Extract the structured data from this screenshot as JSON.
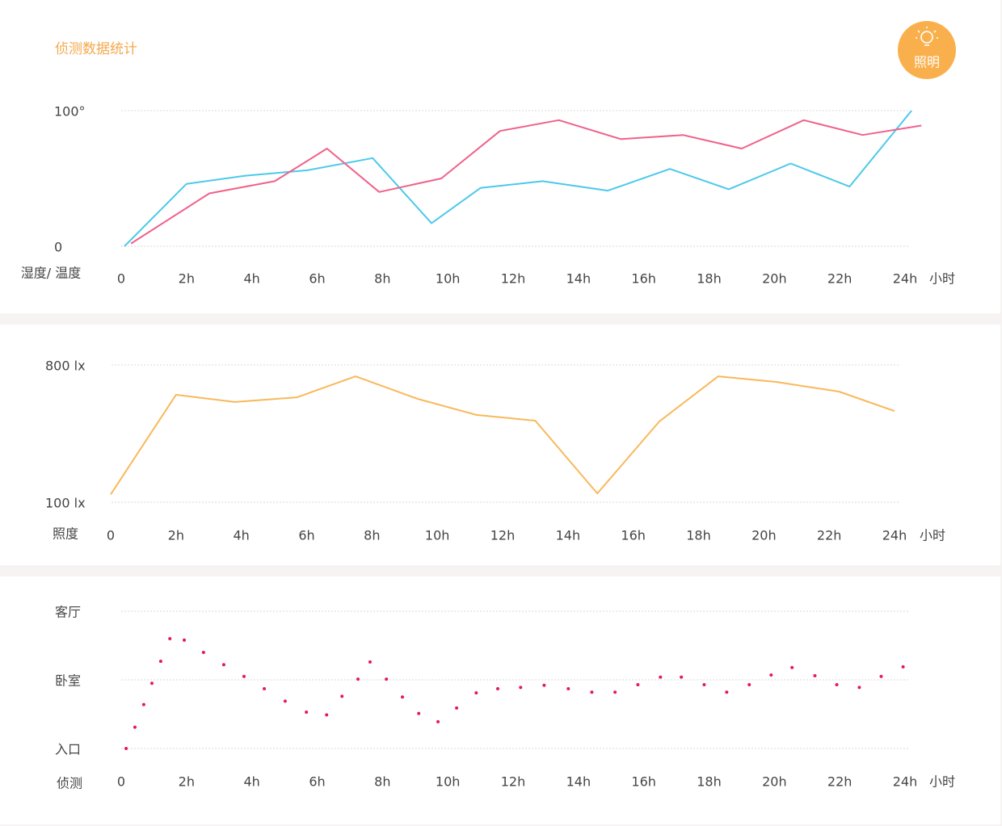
{
  "header": {
    "title": "侦测数据统计",
    "button": "照明"
  },
  "chart_data": [
    {
      "type": "line",
      "y_label": "湿度/ 温度",
      "x_label": "小时",
      "xlim": [
        0,
        24
      ],
      "ylim": [
        0,
        100
      ],
      "xticks": [
        0,
        {
          "value": 2,
          "label": "2h"
        },
        {
          "value": 4,
          "label": "4h"
        },
        {
          "value": 6,
          "label": "6h"
        },
        {
          "value": 8,
          "label": "8h"
        },
        {
          "value": 10,
          "label": "10h"
        },
        {
          "value": 12,
          "label": "12h"
        },
        {
          "value": 14,
          "label": "14h"
        },
        {
          "value": 16,
          "label": "16h"
        },
        {
          "value": 18,
          "label": "18h"
        },
        {
          "value": 20,
          "label": "20h"
        },
        {
          "value": 22,
          "label": "22h"
        },
        {
          "value": 24,
          "label": "24h"
        }
      ],
      "yticks": [
        {
          "value": 100,
          "label": "100°"
        },
        0
      ],
      "grid": true,
      "series": [
        {
          "color": "#4cc9ea",
          "x": [
            0.1,
            2.0,
            3.8,
            5.7,
            7.7,
            9.5,
            11.0,
            12.9,
            14.9,
            16.8,
            18.6,
            20.5,
            22.3,
            24.2
          ],
          "values": [
            0,
            46,
            52,
            56,
            65,
            17,
            43,
            48,
            41,
            57,
            42,
            61,
            44,
            100
          ]
        },
        {
          "color": "#f0618a",
          "x": [
            0.3,
            2.7,
            4.7,
            6.3,
            7.9,
            9.8,
            11.6,
            13.4,
            15.3,
            17.2,
            19.0,
            20.9,
            22.7,
            24.5
          ],
          "values": [
            2,
            39,
            48,
            72,
            40,
            50,
            85,
            93,
            79,
            82,
            72,
            93,
            82,
            89
          ]
        }
      ]
    },
    {
      "type": "line",
      "y_label": "照度",
      "x_label": "小时",
      "xlim": [
        0,
        24
      ],
      "ylim": [
        100,
        800
      ],
      "xticks": [
        0,
        {
          "value": 2,
          "label": "2h"
        },
        {
          "value": 4,
          "label": "4h"
        },
        {
          "value": 6,
          "label": "6h"
        },
        {
          "value": 8,
          "label": "8h"
        },
        {
          "value": 10,
          "label": "10h"
        },
        {
          "value": 12,
          "label": "12h"
        },
        {
          "value": 14,
          "label": "14h"
        },
        {
          "value": 16,
          "label": "16h"
        },
        {
          "value": 18,
          "label": "18h"
        },
        {
          "value": 20,
          "label": "20h"
        },
        {
          "value": 22,
          "label": "22h"
        },
        {
          "value": 24,
          "label": "24h"
        }
      ],
      "yticks": [
        {
          "value": 800,
          "label": "800 lx"
        },
        {
          "value": 100,
          "label": "100 lx"
        }
      ],
      "grid": true,
      "series": [
        {
          "color": "#f9b85a",
          "x": [
            0,
            2.0,
            3.8,
            5.7,
            7.5,
            9.4,
            11.2,
            13.0,
            14.9,
            16.8,
            18.6,
            20.4,
            22.3,
            24.0
          ],
          "values": [
            140,
            648,
            611,
            635,
            742,
            627,
            545,
            516,
            145,
            512,
            742,
            713,
            664,
            565
          ]
        }
      ]
    },
    {
      "type": "scatter",
      "y_label": "侦测",
      "x_label": "小时",
      "xlim": [
        0,
        24
      ],
      "ylim": [
        0,
        2
      ],
      "xticks": [
        0,
        {
          "value": 2,
          "label": "2h"
        },
        {
          "value": 4,
          "label": "4h"
        },
        {
          "value": 6,
          "label": "6h"
        },
        {
          "value": 8,
          "label": "8h"
        },
        {
          "value": 10,
          "label": "10h"
        },
        {
          "value": 12,
          "label": "12h"
        },
        {
          "value": 14,
          "label": "14h"
        },
        {
          "value": 16,
          "label": "16h"
        },
        {
          "value": 18,
          "label": "18h"
        },
        {
          "value": 20,
          "label": "20h"
        },
        {
          "value": 22,
          "label": "22h"
        },
        {
          "value": 24,
          "label": "24h"
        }
      ],
      "yticks": [
        {
          "value": 2,
          "label": "客厅"
        },
        {
          "value": 1,
          "label": "卧室"
        },
        {
          "value": 0,
          "label": "入口"
        }
      ],
      "grid": true,
      "series": [
        {
          "color": "#e6195a",
          "x": [
            0.15,
            0.42,
            0.69,
            0.94,
            1.21,
            1.49,
            1.93,
            2.52,
            3.14,
            3.76,
            4.38,
            5.02,
            5.67,
            6.29,
            6.76,
            7.25,
            7.62,
            8.12,
            8.61,
            9.11,
            9.7,
            10.27,
            10.87,
            11.53,
            12.23,
            12.95,
            13.69,
            14.41,
            15.12,
            15.82,
            16.51,
            17.15,
            17.85,
            18.54,
            19.23,
            19.9,
            20.54,
            21.24,
            21.91,
            22.6,
            23.27,
            23.94
          ],
          "values": [
            0,
            0.31,
            0.64,
            0.95,
            1.27,
            1.6,
            1.58,
            1.4,
            1.22,
            1.05,
            0.87,
            0.69,
            0.53,
            0.49,
            0.76,
            1.01,
            1.26,
            1.01,
            0.75,
            0.51,
            0.39,
            0.59,
            0.81,
            0.87,
            0.89,
            0.92,
            0.87,
            0.82,
            0.82,
            0.93,
            1.04,
            1.04,
            0.93,
            0.82,
            0.93,
            1.07,
            1.18,
            1.06,
            0.93,
            0.89,
            1.05,
            1.19
          ]
        }
      ]
    }
  ]
}
